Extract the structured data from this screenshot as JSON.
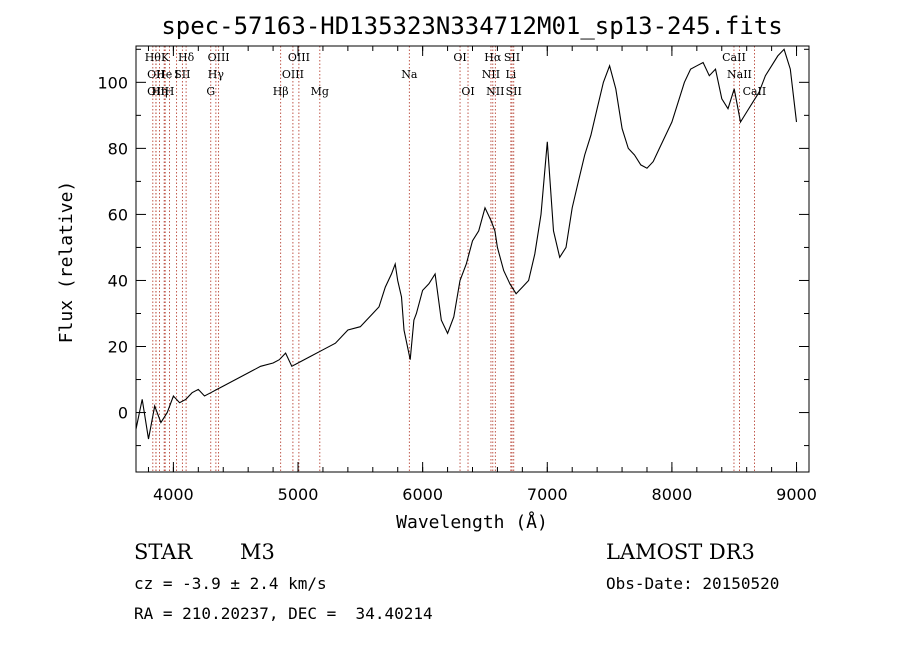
{
  "chart_data": {
    "type": "line",
    "title": "spec-57163-HD135323N334712M01_sp13-245.fits",
    "xlabel": "Wavelength (Å)",
    "ylabel": "Flux (relative)",
    "xlim": [
      3700,
      9100
    ],
    "ylim": [
      -18,
      111
    ],
    "xticks": [
      4000,
      5000,
      6000,
      7000,
      8000,
      9000
    ],
    "yticks": [
      0,
      20,
      40,
      60,
      80,
      100
    ],
    "grid": false,
    "series": [
      {
        "name": "spectrum",
        "color": "#000000",
        "x": [
          3700,
          3750,
          3800,
          3850,
          3900,
          3950,
          4000,
          4050,
          4100,
          4150,
          4200,
          4250,
          4300,
          4350,
          4400,
          4500,
          4600,
          4700,
          4800,
          4850,
          4900,
          4950,
          5000,
          5100,
          5200,
          5300,
          5400,
          5500,
          5600,
          5650,
          5700,
          5750,
          5780,
          5800,
          5830,
          5850,
          5900,
          5930,
          5950,
          6000,
          6050,
          6100,
          6150,
          6200,
          6250,
          6300,
          6350,
          6400,
          6450,
          6500,
          6550,
          6580,
          6600,
          6650,
          6700,
          6750,
          6800,
          6850,
          6900,
          6950,
          7000,
          7050,
          7100,
          7150,
          7200,
          7250,
          7300,
          7350,
          7400,
          7450,
          7500,
          7550,
          7600,
          7650,
          7700,
          7750,
          7800,
          7850,
          7900,
          8000,
          8100,
          8150,
          8200,
          8250,
          8300,
          8350,
          8400,
          8450,
          8500,
          8550,
          8600,
          8650,
          8700,
          8750,
          8800,
          8850,
          8900,
          8950,
          9000
        ],
        "y": [
          -5,
          4,
          -8,
          2,
          -3,
          0,
          5,
          3,
          4,
          6,
          7,
          5,
          6,
          7,
          8,
          10,
          12,
          14,
          15,
          16,
          18,
          14,
          15,
          17,
          19,
          21,
          25,
          26,
          30,
          32,
          38,
          42,
          45,
          40,
          35,
          25,
          16,
          28,
          30,
          37,
          39,
          42,
          28,
          24,
          29,
          40,
          45,
          52,
          55,
          62,
          58,
          55,
          50,
          43,
          39,
          36,
          38,
          40,
          48,
          60,
          82,
          55,
          47,
          50,
          62,
          70,
          78,
          84,
          92,
          100,
          105,
          98,
          86,
          80,
          78,
          75,
          74,
          76,
          80,
          88,
          100,
          104,
          105,
          106,
          102,
          104,
          95,
          92,
          98,
          88,
          91,
          94,
          97,
          102,
          105,
          108,
          110,
          104,
          88
        ]
      }
    ],
    "line_annotations": [
      {
        "x": 3835,
        "label": "Hθ",
        "row": 1
      },
      {
        "x": 3860,
        "label": "OII",
        "row": 2
      },
      {
        "x": 3860,
        "label": "OII",
        "row": 3
      },
      {
        "x": 3889,
        "label": "Hη",
        "row": 3
      },
      {
        "x": 3926,
        "label": "He",
        "row": 2
      },
      {
        "x": 3934,
        "label": "K",
        "row": 1
      },
      {
        "x": 3969,
        "label": "H",
        "row": 3
      },
      {
        "x": 4026,
        "label": "I",
        "row": 2
      },
      {
        "x": 4072,
        "label": "SII",
        "row": 2
      },
      {
        "x": 4102,
        "label": "Hδ",
        "row": 1
      },
      {
        "x": 4300,
        "label": "G",
        "row": 3
      },
      {
        "x": 4341,
        "label": "Hγ",
        "row": 2
      },
      {
        "x": 4363,
        "label": "OIII",
        "row": 1
      },
      {
        "x": 4861,
        "label": "Hβ",
        "row": 3
      },
      {
        "x": 4959,
        "label": "OIII",
        "row": 2
      },
      {
        "x": 5007,
        "label": "OIII",
        "row": 1
      },
      {
        "x": 5175,
        "label": "Mg",
        "row": 3
      },
      {
        "x": 5893,
        "label": "Na",
        "row": 2
      },
      {
        "x": 6300,
        "label": "OI",
        "row": 1
      },
      {
        "x": 6364,
        "label": "OI",
        "row": 3
      },
      {
        "x": 6548,
        "label": "NII",
        "row": 2
      },
      {
        "x": 6563,
        "label": "Hα",
        "row": 1
      },
      {
        "x": 6583,
        "label": "NII",
        "row": 3
      },
      {
        "x": 6708,
        "label": "Li",
        "row": 2
      },
      {
        "x": 6717,
        "label": "SII",
        "row": 1
      },
      {
        "x": 6731,
        "label": "SII",
        "row": 3
      },
      {
        "x": 8498,
        "label": "CaII",
        "row": 1
      },
      {
        "x": 8542,
        "label": "NaII",
        "row": 2
      },
      {
        "x": 8662,
        "label": "CaII",
        "row": 3
      }
    ]
  },
  "footer": {
    "object_type": "STAR",
    "subclass": "M3",
    "survey": "LAMOST DR3",
    "redshift": "cz = -3.9 ± 2.4 km/s",
    "obs_date": "Obs-Date: 20150520",
    "coords": "RA = 210.20237, DEC =  34.40214"
  },
  "colors": {
    "line_marker": "#b03020",
    "spectrum": "#000000"
  }
}
